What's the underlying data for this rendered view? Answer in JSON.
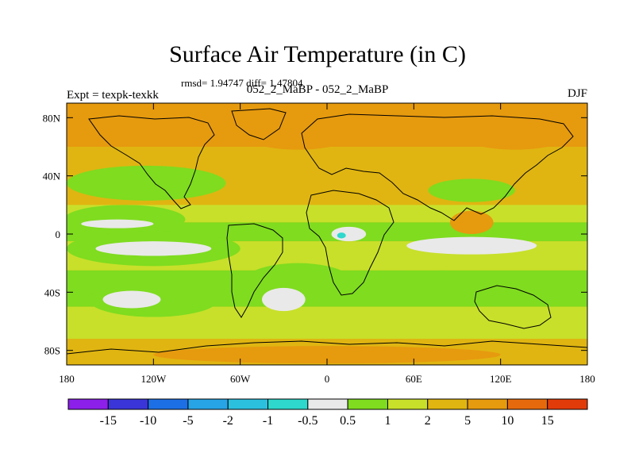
{
  "chart_data": {
    "type": "heatmap",
    "title": "Surface Air Temperature (in C)",
    "stats_label": "rmsd= 1.94747 diff= 1.47804",
    "subtitle": "052_2_MaBP - 052_2_MaBP",
    "left_label": "Expt = texpk-texkk",
    "right_label": "DJF",
    "xlim": [
      -180,
      180
    ],
    "ylim": [
      -90,
      90
    ],
    "x_ticks": [
      {
        "value": -180,
        "label": "180"
      },
      {
        "value": -120,
        "label": "120W"
      },
      {
        "value": -60,
        "label": "60W"
      },
      {
        "value": 0,
        "label": "0"
      },
      {
        "value": 60,
        "label": "60E"
      },
      {
        "value": 120,
        "label": "120E"
      },
      {
        "value": 180,
        "label": "180"
      }
    ],
    "y_ticks": [
      {
        "value": 80,
        "label": "80N"
      },
      {
        "value": 40,
        "label": "40N"
      },
      {
        "value": 0,
        "label": "0"
      },
      {
        "value": -40,
        "label": "40S"
      },
      {
        "value": -80,
        "label": "80S"
      }
    ],
    "colorbar": {
      "colors": [
        "#8c1fea",
        "#3a35d8",
        "#1d6fe5",
        "#27a4e6",
        "#2cc0df",
        "#2ed8cc",
        "#e9e9e9",
        "#7fdc1f",
        "#c8e02a",
        "#e0b511",
        "#e69a0e",
        "#e66a0c",
        "#e23b0a"
      ],
      "labels": [
        "-15",
        "-10",
        "-5",
        "-2",
        "-1",
        "-0.5",
        "0.5",
        "1",
        "2",
        "5",
        "10",
        "15"
      ]
    },
    "regions": [
      {
        "level": "0.5 to 1",
        "lon": -125,
        "lat": 35,
        "rx": 55,
        "ry": 12
      },
      {
        "level": "0.5 to 1",
        "lon": -140,
        "lat": 10,
        "rx": 42,
        "ry": 10
      },
      {
        "level": "0.5 to 1",
        "lon": -120,
        "lat": -10,
        "rx": 60,
        "ry": 12
      },
      {
        "level": "0.5 to 1",
        "lon": -20,
        "lat": -35,
        "rx": 40,
        "ry": 15
      },
      {
        "level": "0.5 to 1",
        "lon": 80,
        "lat": -35,
        "rx": 50,
        "ry": 10
      },
      {
        "level": "0.5 to 1",
        "lon": -120,
        "lat": -45,
        "rx": 45,
        "ry": 12
      },
      {
        "level": "0.5 to 1",
        "lon": 100,
        "lat": 30,
        "rx": 30,
        "ry": 8
      },
      {
        "level": "-0.5 to 0.5",
        "lon": -145,
        "lat": 7,
        "rx": 25,
        "ry": 3
      },
      {
        "level": "-0.5 to 0.5",
        "lon": -120,
        "lat": -10,
        "rx": 40,
        "ry": 5
      },
      {
        "level": "-0.5 to 0.5",
        "lon": -30,
        "lat": -45,
        "rx": 15,
        "ry": 8
      },
      {
        "level": "-0.5 to 0.5",
        "lon": -135,
        "lat": -45,
        "rx": 20,
        "ry": 6
      },
      {
        "level": "-0.5 to 0.5",
        "lon": 100,
        "lat": -8,
        "rx": 45,
        "ry": 6
      },
      {
        "level": "-0.5 to 0.5",
        "lon": 15,
        "lat": 0,
        "rx": 12,
        "ry": 5
      },
      {
        "level": "-1 to -0.5",
        "lon": 10,
        "lat": -1,
        "rx": 3,
        "ry": 2
      },
      {
        "level": "5 to 10",
        "lon": -20,
        "lat": 70,
        "rx": 40,
        "ry": 12
      },
      {
        "level": "5 to 10",
        "lon": 130,
        "lat": 70,
        "rx": 40,
        "ry": 12
      },
      {
        "level": "5 to 10",
        "lon": 100,
        "lat": 8,
        "rx": 15,
        "ry": 8
      },
      {
        "level": "5 to 10",
        "lon": 0,
        "lat": -83,
        "rx": 120,
        "ry": 6
      }
    ]
  }
}
